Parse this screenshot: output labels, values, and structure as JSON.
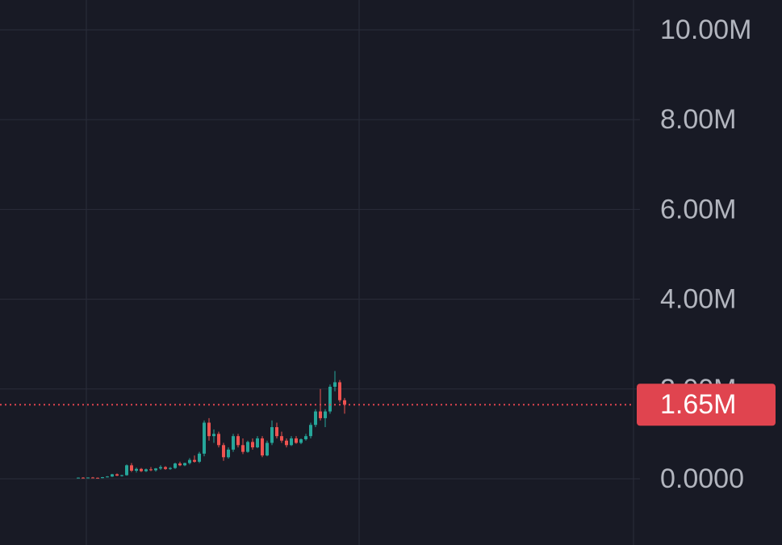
{
  "chart_data": {
    "type": "candlestick",
    "open": [
      20000,
      25000,
      20000,
      28000,
      22000,
      15000,
      35000,
      50000,
      100000,
      70000,
      80000,
      300000,
      180000,
      220000,
      170000,
      210000,
      190000,
      230000,
      260000,
      220000,
      240000,
      340000,
      300000,
      350000,
      420000,
      380000,
      560000,
      1250000,
      950000,
      1000000,
      750000,
      480000,
      650000,
      950000,
      750000,
      600000,
      820000,
      700000,
      900000,
      520000,
      800000,
      1150000,
      950000,
      850000,
      750000,
      900000,
      800000,
      880000,
      950000,
      1200000,
      1500000,
      1350000,
      1500000,
      2050000,
      2150000,
      1750000
    ],
    "high": [
      30000,
      35000,
      30000,
      40000,
      30000,
      40000,
      60000,
      110000,
      120000,
      90000,
      320000,
      350000,
      250000,
      240000,
      230000,
      260000,
      240000,
      300000,
      280000,
      260000,
      360000,
      380000,
      360000,
      460000,
      520000,
      600000,
      1300000,
      1350000,
      1100000,
      1050000,
      800000,
      700000,
      1000000,
      1000000,
      900000,
      850000,
      900000,
      950000,
      950000,
      850000,
      1300000,
      1250000,
      1050000,
      900000,
      950000,
      950000,
      900000,
      1000000,
      1250000,
      1550000,
      2000000,
      1550000,
      2100000,
      2400000,
      2200000,
      1800000
    ],
    "low": [
      10000,
      15000,
      10000,
      20000,
      10000,
      10000,
      30000,
      40000,
      60000,
      50000,
      70000,
      150000,
      140000,
      150000,
      150000,
      170000,
      160000,
      200000,
      200000,
      200000,
      220000,
      280000,
      280000,
      320000,
      360000,
      350000,
      500000,
      850000,
      800000,
      700000,
      400000,
      450000,
      600000,
      700000,
      550000,
      580000,
      650000,
      680000,
      480000,
      500000,
      750000,
      900000,
      800000,
      700000,
      730000,
      780000,
      770000,
      850000,
      900000,
      1150000,
      1300000,
      1150000,
      1450000,
      1950000,
      1700000,
      1450000
    ],
    "close": [
      25000,
      20000,
      28000,
      22000,
      15000,
      35000,
      50000,
      100000,
      70000,
      80000,
      300000,
      180000,
      220000,
      170000,
      210000,
      190000,
      230000,
      260000,
      220000,
      240000,
      340000,
      300000,
      350000,
      420000,
      380000,
      560000,
      1250000,
      950000,
      1000000,
      750000,
      480000,
      650000,
      950000,
      750000,
      600000,
      820000,
      700000,
      900000,
      520000,
      800000,
      1150000,
      950000,
      850000,
      750000,
      900000,
      800000,
      880000,
      950000,
      1200000,
      1500000,
      1350000,
      1500000,
      2050000,
      2150000,
      1750000,
      1650000
    ],
    "up_color": "#26a69a",
    "down_color": "#ef5350",
    "ylim": [
      -1475000,
      10665000
    ],
    "yticks": [
      {
        "value": 0,
        "label": "0.0000"
      },
      {
        "value": 2000000,
        "label": "2.00M"
      },
      {
        "value": 4000000,
        "label": "4.00M"
      },
      {
        "value": 6000000,
        "label": "6.00M"
      },
      {
        "value": 8000000,
        "label": "8.00M"
      },
      {
        "value": 10000000,
        "label": "10.00M"
      }
    ],
    "grid": true,
    "last_price": 1650000,
    "last_price_label": "1.65M",
    "last_price_color": "#e0444f"
  }
}
